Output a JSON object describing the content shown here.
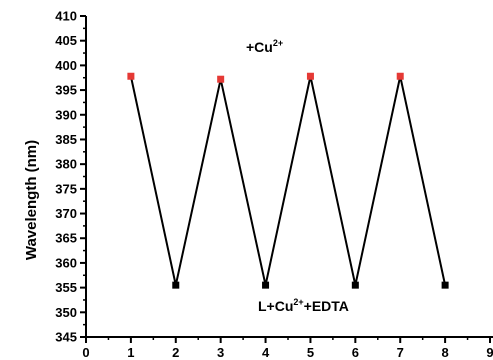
{
  "chart_data": {
    "type": "line",
    "title": "",
    "xlabel": "",
    "ylabel": "Wavelength (nm)",
    "xlim": [
      0,
      9
    ],
    "ylim": [
      345,
      410
    ],
    "x_ticks": [
      "0",
      "1",
      "2",
      "3",
      "4",
      "5",
      "6",
      "7",
      "8",
      "9"
    ],
    "y_ticks": [
      "345",
      "350",
      "355",
      "360",
      "365",
      "370",
      "375",
      "380",
      "385",
      "390",
      "395",
      "400",
      "405",
      "410"
    ],
    "series": [
      {
        "x": [
          1,
          2,
          3,
          4,
          5,
          6,
          7,
          8
        ],
        "y": [
          397.8,
          355.5,
          397.2,
          355.5,
          397.8,
          355.5,
          397.8,
          355.5
        ]
      }
    ],
    "point_colors": [
      "#e53935",
      "#000000",
      "#e53935",
      "#000000",
      "#e53935",
      "#000000",
      "#e53935",
      "#000000"
    ],
    "annotations": [
      {
        "name": "annotation-cu",
        "base": "+Cu",
        "sup": "2+",
        "suffix": ""
      },
      {
        "name": "annotation-edta",
        "base": "L+Cu",
        "sup": "2+",
        "suffix": "+EDTA"
      }
    ]
  }
}
